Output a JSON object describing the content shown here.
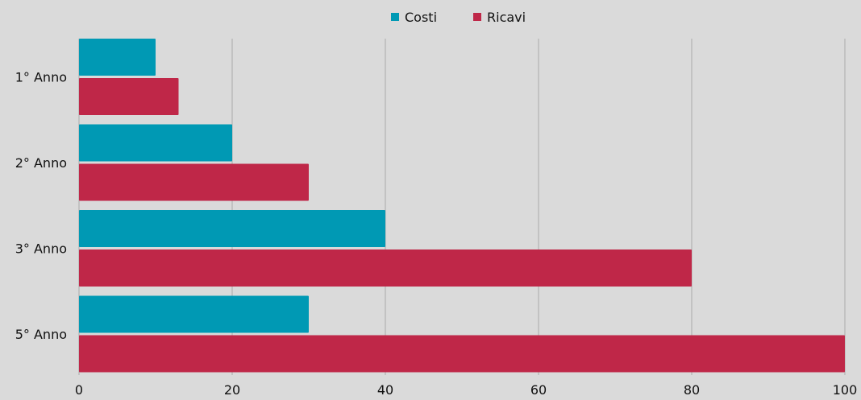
{
  "chart_data": {
    "type": "bar",
    "orientation": "horizontal",
    "categories": [
      "1° Anno",
      "2° Anno",
      "3° Anno",
      "5° Anno"
    ],
    "series": [
      {
        "name": "Costi",
        "values": [
          10,
          20,
          40,
          30
        ],
        "color": "#0099b4"
      },
      {
        "name": "Ricavi",
        "values": [
          13,
          30,
          80,
          100
        ],
        "color": "#bf2748"
      }
    ],
    "xlim": [
      0,
      100
    ],
    "x_ticks": [
      0,
      20,
      40,
      60,
      80,
      100
    ],
    "x_tick_labels": [
      "0",
      "20",
      "40",
      "60",
      "80",
      "100"
    ],
    "grid": true,
    "legend_position": "top-center",
    "title": "",
    "xlabel": "",
    "ylabel": ""
  }
}
